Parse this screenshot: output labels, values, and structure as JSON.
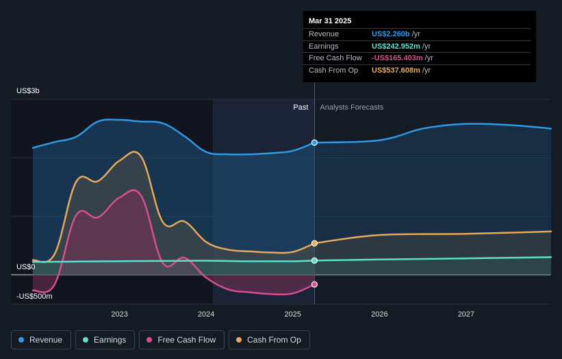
{
  "colors": {
    "revenue": "#2e9be8",
    "earnings": "#5fe0cc",
    "free_cash_flow": "#d94f8f",
    "cash_from_op": "#e9a95c"
  },
  "chart_data": {
    "type": "area",
    "y_axis_labels": [
      "US$3b",
      "US$0",
      "-US$500m"
    ],
    "ylim": [
      -500,
      3000
    ],
    "x_ticks": [
      "2023",
      "2024",
      "2025",
      "2026",
      "2027"
    ],
    "x_tick_values": [
      2023.0,
      2024.0,
      2025.0,
      2026.0,
      2027.0
    ],
    "xlim": [
      2021.75,
      2027.98
    ],
    "divider_x": 2025.25,
    "past_label": "Past",
    "forecast_label": "Analysts Forecasts",
    "grid": true,
    "series": [
      {
        "name": "Revenue",
        "key": "revenue",
        "x": [
          2022.0,
          2022.25,
          2022.5,
          2022.75,
          2023.0,
          2023.25,
          2023.5,
          2023.75,
          2024.0,
          2024.25,
          2024.5,
          2024.75,
          2025.0,
          2025.25
        ],
        "values": [
          2170,
          2270,
          2360,
          2620,
          2650,
          2620,
          2590,
          2370,
          2100,
          2060,
          2060,
          2080,
          2120,
          2260
        ],
        "forecast_x": [
          2025.25,
          2026.0,
          2026.5,
          2027.0,
          2027.5,
          2027.98
        ],
        "forecast_values": [
          2260,
          2300,
          2500,
          2580,
          2560,
          2500
        ]
      },
      {
        "name": "Earnings",
        "key": "earnings",
        "x": [
          2022.0,
          2022.5,
          2023.0,
          2023.5,
          2024.0,
          2024.5,
          2025.0,
          2025.25
        ],
        "values": [
          220,
          225,
          232,
          235,
          240,
          230,
          230,
          243
        ],
        "forecast_x": [
          2025.25,
          2026.0,
          2027.0,
          2027.98
        ],
        "forecast_values": [
          243,
          260,
          280,
          300
        ]
      },
      {
        "name": "Free Cash Flow",
        "key": "free_cash_flow",
        "x": [
          2022.0,
          2022.25,
          2022.5,
          2022.75,
          2023.0,
          2023.25,
          2023.5,
          2023.75,
          2024.0,
          2024.25,
          2024.5,
          2024.75,
          2025.0,
          2025.25
        ],
        "values": [
          -270,
          -170,
          1020,
          980,
          1320,
          1350,
          200,
          290,
          -50,
          -250,
          -300,
          -330,
          -320,
          -165
        ]
      },
      {
        "name": "Cash From Op",
        "key": "cash_from_op",
        "x": [
          2022.0,
          2022.25,
          2022.5,
          2022.75,
          2023.0,
          2023.25,
          2023.5,
          2023.75,
          2024.0,
          2024.25,
          2024.5,
          2024.75,
          2025.0,
          2025.25
        ],
        "values": [
          250,
          350,
          1590,
          1600,
          1950,
          2020,
          900,
          910,
          560,
          430,
          400,
          380,
          390,
          538
        ],
        "forecast_x": [
          2025.25,
          2026.0,
          2027.0,
          2027.98
        ],
        "forecast_values": [
          538,
          680,
          700,
          740
        ]
      }
    ],
    "tooltip": {
      "date": "Mar 31 2025",
      "rows": [
        {
          "label": "Revenue",
          "value": "US$2.260b",
          "unit": "/yr",
          "key": "revenue"
        },
        {
          "label": "Earnings",
          "value": "US$242.952m",
          "unit": "/yr",
          "key": "earnings"
        },
        {
          "label": "Free Cash Flow",
          "value": "-US$165.403m",
          "unit": "/yr",
          "key": "free_cash_flow"
        },
        {
          "label": "Cash From Op",
          "value": "US$537.608m",
          "unit": "/yr",
          "key": "cash_from_op"
        }
      ]
    }
  },
  "legend": {
    "items": [
      {
        "label": "Revenue",
        "key": "revenue"
      },
      {
        "label": "Earnings",
        "key": "earnings"
      },
      {
        "label": "Free Cash Flow",
        "key": "free_cash_flow"
      },
      {
        "label": "Cash From Op",
        "key": "cash_from_op"
      }
    ]
  }
}
